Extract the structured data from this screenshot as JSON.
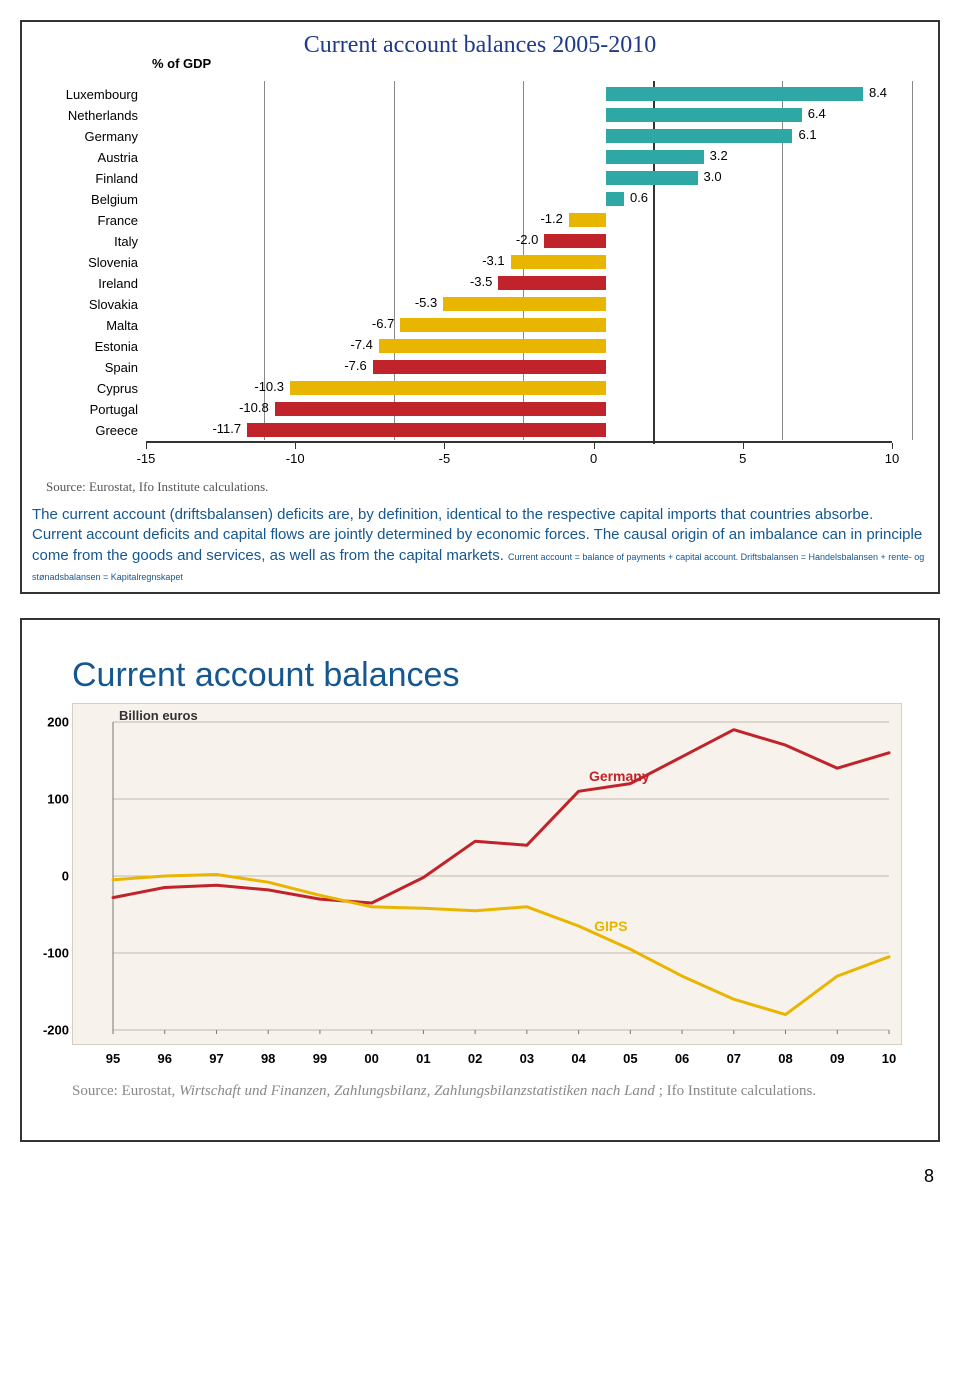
{
  "page_number": "8",
  "panel1": {
    "title": "Current account balances 2005-2010",
    "y_unit": "% of GDP",
    "source": "Source: Eurostat, Ifo Institute calculations.",
    "xlim": [
      -15,
      10
    ],
    "xticks": [
      -15,
      -10,
      -5,
      0,
      5,
      10
    ],
    "positive_color": "#2fa7a5",
    "negative_color": "#e8b500",
    "highlight_color": "#c0232a",
    "background": "#ffffff",
    "label_fontsize": 13,
    "title_fontsize": 24,
    "title_color": "#203a8a",
    "bars": [
      {
        "country": "Luxembourg",
        "value": 8.4,
        "highlight": false
      },
      {
        "country": "Netherlands",
        "value": 6.4,
        "highlight": false
      },
      {
        "country": "Germany",
        "value": 6.1,
        "highlight": false
      },
      {
        "country": "Austria",
        "value": 3.2,
        "highlight": false
      },
      {
        "country": "Finland",
        "value": 3.0,
        "highlight": false
      },
      {
        "country": "Belgium",
        "value": 0.6,
        "highlight": false
      },
      {
        "country": "France",
        "value": -1.2,
        "highlight": false
      },
      {
        "country": "Italy",
        "value": -2.0,
        "highlight": true
      },
      {
        "country": "Slovenia",
        "value": -3.1,
        "highlight": false
      },
      {
        "country": "Ireland",
        "value": -3.5,
        "highlight": true
      },
      {
        "country": "Slovakia",
        "value": -5.3,
        "highlight": false
      },
      {
        "country": "Malta",
        "value": -6.7,
        "highlight": false
      },
      {
        "country": "Estonia",
        "value": -7.4,
        "highlight": false
      },
      {
        "country": "Spain",
        "value": -7.6,
        "highlight": true
      },
      {
        "country": "Cyprus",
        "value": -10.3,
        "highlight": false
      },
      {
        "country": "Portugal",
        "value": -10.8,
        "highlight": true
      },
      {
        "country": "Greece",
        "value": -11.7,
        "highlight": true
      }
    ],
    "explain_html": "The current account (driftsbalansen) deficits are, by definition, identical to the respective capital imports that countries absorbe. Current account deficits and capital flows are jointly determined by economic forces. The causal origin of an imbalance can in principle come from the goods and services, as well as from the capital markets.",
    "explain_small": " Current account = balance of payments + capital account. Driftsbalansen = Handelsbalansen + rente- og stønadsbalansen = Kapitalregnskapet"
  },
  "panel2": {
    "title": "Current account balances",
    "y_unit": "Billion euros",
    "background": "#f8f2ec",
    "grid_color": "#c1b8ac",
    "ylim": [
      -200,
      200
    ],
    "yticks": [
      -200,
      -100,
      0,
      100,
      200
    ],
    "xticks": [
      "95",
      "96",
      "97",
      "98",
      "99",
      "00",
      "01",
      "02",
      "03",
      "04",
      "05",
      "06",
      "07",
      "08",
      "09",
      "10"
    ],
    "x_values": [
      95,
      96,
      97,
      98,
      99,
      100,
      101,
      102,
      103,
      104,
      105,
      106,
      107,
      108,
      109,
      110
    ],
    "series": [
      {
        "name": "Germany",
        "color": "#c0232a",
        "line_width": 3,
        "label_pos": {
          "x": 104.2,
          "y": 140
        },
        "data": [
          -28,
          -15,
          -12,
          -18,
          -30,
          -35,
          -2,
          45,
          40,
          110,
          120,
          155,
          190,
          170,
          140,
          160
        ]
      },
      {
        "name": "GIPS",
        "color": "#e8b500",
        "line_width": 3,
        "label_pos": {
          "x": 104.3,
          "y": -55
        },
        "data": [
          -5,
          0,
          2,
          -8,
          -25,
          -40,
          -42,
          -45,
          -40,
          -65,
          -95,
          -130,
          -160,
          -180,
          -130,
          -105
        ]
      }
    ],
    "source_prefix": "Source: Eurostat, ",
    "source_italic": "Wirtschaft und Finanzen,  Zahlungsbilanz, Zahlungsbilanzstatistiken nach Land",
    "source_suffix": "; Ifo Institute calculations."
  }
}
